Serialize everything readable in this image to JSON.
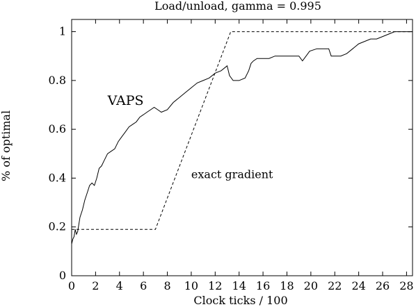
{
  "chart_data": {
    "type": "line",
    "title": "Load/unload, gamma = 0.995",
    "xlabel": "Clock ticks / 100",
    "ylabel": "% of optimal",
    "xlim": [
      0,
      28.5
    ],
    "ylim": [
      0,
      1.05
    ],
    "xticks": [
      0,
      2,
      4,
      6,
      8,
      10,
      12,
      14,
      16,
      18,
      20,
      22,
      24,
      26,
      28
    ],
    "yticks": [
      0,
      0.2,
      0.4,
      0.6,
      0.8,
      1
    ],
    "xtick_labels": [
      "0",
      "2",
      "4",
      "6",
      "8",
      "10",
      "12",
      "14",
      "16",
      "18",
      "20",
      "22",
      "24",
      "26",
      "28"
    ],
    "ytick_labels": [
      "0",
      "0.2",
      "0.4",
      "0.6",
      "0.8",
      "1"
    ],
    "grid": false,
    "annotations": [
      {
        "text": "VAPS",
        "x": 3.0,
        "y": 0.7,
        "series": "VAPS"
      },
      {
        "text": "exact gradient",
        "x": 10.0,
        "y": 0.4,
        "series": "exact gradient"
      }
    ],
    "series": [
      {
        "name": "VAPS",
        "style": "solid",
        "x": [
          0.0,
          0.1,
          0.2,
          0.3,
          0.4,
          0.5,
          0.7,
          0.9,
          1.1,
          1.3,
          1.5,
          1.7,
          1.9,
          2.1,
          2.3,
          2.5,
          2.7,
          3.0,
          3.3,
          3.6,
          3.9,
          4.2,
          4.5,
          4.8,
          5.1,
          5.4,
          5.7,
          6.0,
          6.3,
          6.6,
          6.9,
          7.2,
          7.5,
          8.0,
          8.5,
          9.0,
          9.5,
          10.0,
          10.5,
          11.0,
          11.5,
          12.0,
          12.5,
          13.0,
          13.2,
          13.5,
          14.0,
          14.5,
          14.8,
          15.0,
          15.2,
          15.5,
          16.0,
          16.5,
          17.0,
          17.5,
          18.0,
          18.5,
          19.0,
          19.3,
          19.6,
          19.9,
          20.5,
          21.0,
          21.5,
          21.7,
          22.0,
          22.5,
          23.0,
          23.5,
          24.0,
          24.5,
          25.0,
          25.5,
          26.0,
          26.5,
          27.0,
          27.5,
          28.0,
          28.5
        ],
        "y": [
          0.13,
          0.15,
          0.16,
          0.19,
          0.17,
          0.18,
          0.24,
          0.27,
          0.31,
          0.34,
          0.37,
          0.38,
          0.37,
          0.4,
          0.44,
          0.45,
          0.47,
          0.5,
          0.51,
          0.52,
          0.55,
          0.57,
          0.59,
          0.61,
          0.62,
          0.63,
          0.65,
          0.66,
          0.67,
          0.68,
          0.69,
          0.68,
          0.67,
          0.68,
          0.71,
          0.73,
          0.75,
          0.77,
          0.79,
          0.8,
          0.81,
          0.83,
          0.84,
          0.86,
          0.82,
          0.8,
          0.8,
          0.81,
          0.84,
          0.87,
          0.88,
          0.89,
          0.89,
          0.89,
          0.9,
          0.9,
          0.9,
          0.9,
          0.9,
          0.88,
          0.9,
          0.92,
          0.93,
          0.93,
          0.93,
          0.9,
          0.9,
          0.9,
          0.91,
          0.93,
          0.95,
          0.96,
          0.97,
          0.97,
          0.98,
          0.99,
          1.0,
          1.0,
          1.0,
          1.0
        ]
      },
      {
        "name": "exact gradient",
        "style": "dashed",
        "x": [
          0.0,
          7.0,
          13.3,
          28.5
        ],
        "y": [
          0.19,
          0.19,
          1.0,
          1.0
        ]
      }
    ]
  }
}
